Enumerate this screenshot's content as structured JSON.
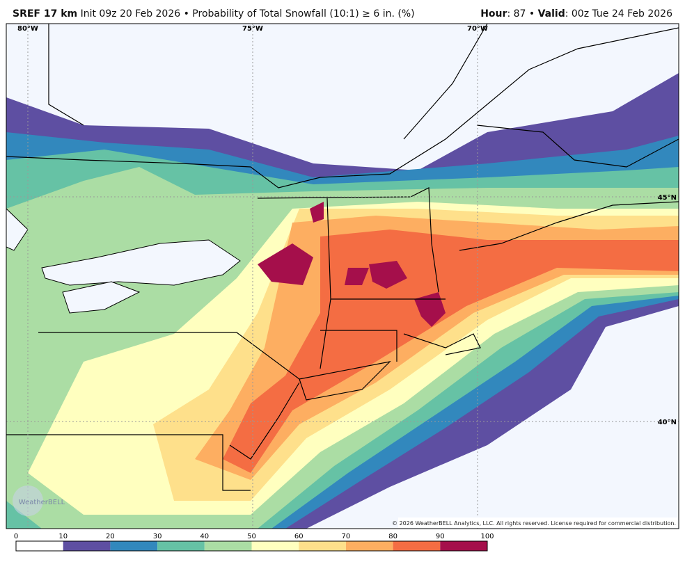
{
  "header": {
    "model": "SREF 17 km",
    "details": "Init 09z 20 Feb 2026 • Probability of Total Snowfall (10:1) ≥ 6 in. (%)",
    "hour_label": "Hour",
    "hour_value": ": 87 • ",
    "valid_label": "Valid",
    "valid_value": ": 00z Tue 24 Feb 2026"
  },
  "map": {
    "lon_labels": [
      "80°W",
      "75°W",
      "70°W"
    ],
    "lat_labels": [
      "45°N",
      "40°N"
    ],
    "watermark": "WeatherBELL",
    "copyright": "© 2026 WeatherBELL Analytics, LLC. All rights reserved. License required for commercial distribution."
  },
  "colorbar": {
    "ticks": [
      0,
      10,
      20,
      30,
      40,
      50,
      60,
      70,
      80,
      90,
      100
    ],
    "colors": [
      "#ffffff",
      "#5e4fa2",
      "#3288bd",
      "#66c2a5",
      "#abdda4",
      "#ffffbf",
      "#fee08b",
      "#fdae61",
      "#f46d43",
      "#a50f4b"
    ]
  }
}
